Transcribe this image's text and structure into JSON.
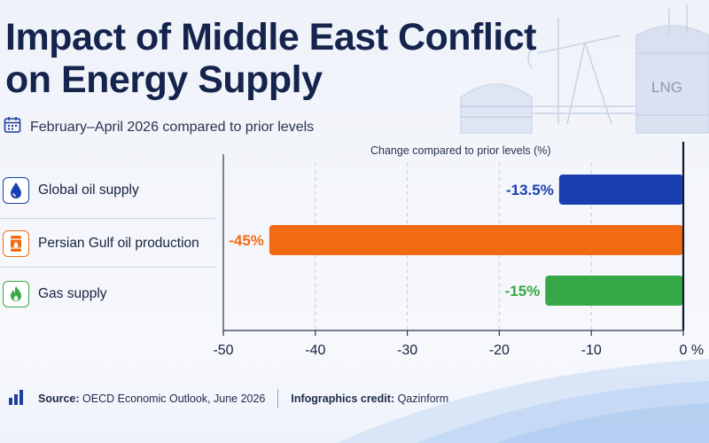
{
  "header": {
    "title": "Impact of Middle East Conflict on Energy Supply",
    "subtitle": "February–April 2026 compared to prior levels"
  },
  "rows": [
    {
      "label": "Global oil supply",
      "icon": "oil-drop-icon",
      "color": "#1a3fb0"
    },
    {
      "label": "Persian Gulf oil production",
      "icon": "oil-barrel-icon",
      "color": "#f26a12"
    },
    {
      "label": "Gas supply",
      "icon": "flame-icon",
      "color": "#36a845"
    }
  ],
  "chart_data": {
    "type": "bar",
    "orientation": "horizontal",
    "title": "",
    "axis_title": "Change compared to prior levels (%)",
    "categories": [
      "Global oil supply",
      "Persian Gulf oil production",
      "Gas supply"
    ],
    "values": [
      -13.5,
      -45,
      -15
    ],
    "value_labels": [
      "-13.5%",
      "-45%",
      "-15%"
    ],
    "xlim": [
      -50,
      0
    ],
    "x_ticks": [
      -50,
      -40,
      -30,
      -20,
      -10,
      0
    ],
    "x_tick_labels": [
      "-50",
      "-40",
      "-30",
      "-20",
      "-10",
      "0"
    ],
    "x_unit": "%",
    "grid": "vertical dashed",
    "colors": [
      "#1a3fb0",
      "#f26a12",
      "#36a845"
    ]
  },
  "background": {
    "tank_label": "LNG"
  },
  "footer": {
    "source_label": "Source:",
    "source_text": "OECD Economic Outlook, June 2026",
    "credit_label": "Infographics credit:",
    "credit_text": "Qazinform"
  }
}
